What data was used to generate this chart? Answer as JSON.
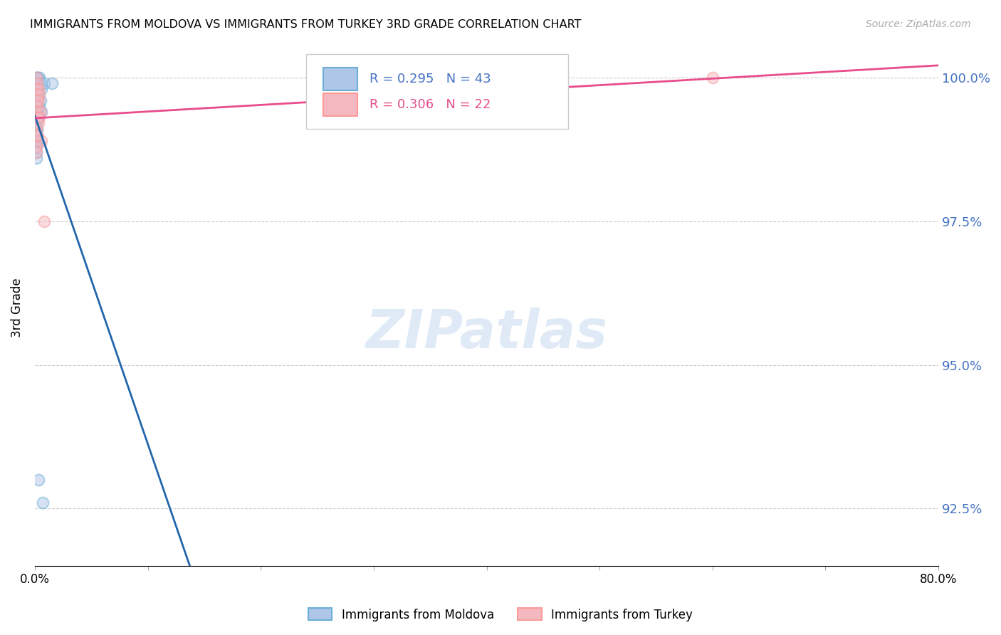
{
  "title": "IMMIGRANTS FROM MOLDOVA VS IMMIGRANTS FROM TURKEY 3RD GRADE CORRELATION CHART",
  "source": "Source: ZipAtlas.com",
  "ylabel": "3rd Grade",
  "xlim": [
    0.0,
    0.8
  ],
  "ylim": [
    0.915,
    1.005
  ],
  "ytick_vals": [
    1.0,
    0.975,
    0.95,
    0.925
  ],
  "ytick_labels": [
    "100.0%",
    "97.5%",
    "95.0%",
    "92.5%"
  ],
  "xtick_vals": [
    0.0,
    0.1,
    0.2,
    0.3,
    0.4,
    0.5,
    0.6,
    0.7,
    0.8
  ],
  "xtick_labels": [
    "0.0%",
    "",
    "",
    "",
    "",
    "",
    "",
    "",
    "80.0%"
  ],
  "moldova_color_fill": "#aec6e8",
  "moldova_color_edge": "#6baed6",
  "moldova_line_color": "#2166ac",
  "turkey_color_fill": "#f4b8c1",
  "turkey_color_edge": "#fb9a99",
  "turkey_line_color": "#e84c8b",
  "moldova_R": 0.295,
  "moldova_N": 43,
  "turkey_R": 0.306,
  "turkey_N": 22,
  "legend_label_moldova": "Immigrants from Moldova",
  "legend_label_turkey": "Immigrants from Turkey",
  "moldova_x": [
    0.001,
    0.002,
    0.003,
    0.001,
    0.002,
    0.004,
    0.001,
    0.001,
    0.002,
    0.003,
    0.005,
    0.001,
    0.002,
    0.001,
    0.002,
    0.003,
    0.001,
    0.001,
    0.002,
    0.006,
    0.001,
    0.002,
    0.001,
    0.003,
    0.002,
    0.001,
    0.004,
    0.001,
    0.002,
    0.001,
    0.003,
    0.002,
    0.001,
    0.001,
    0.002,
    0.001,
    0.008,
    0.001,
    0.005,
    0.006,
    0.003,
    0.007,
    0.015
  ],
  "moldova_y": [
    1.0,
    1.0,
    1.0,
    0.999,
    0.999,
    1.0,
    0.998,
    0.998,
    0.998,
    0.999,
    0.999,
    0.997,
    0.997,
    0.996,
    0.996,
    0.997,
    0.995,
    0.995,
    0.994,
    0.998,
    0.993,
    0.993,
    0.993,
    0.994,
    0.993,
    0.992,
    0.995,
    0.991,
    0.991,
    0.99,
    0.993,
    0.99,
    0.989,
    0.988,
    0.989,
    0.987,
    0.999,
    0.986,
    0.996,
    0.994,
    0.93,
    0.926,
    0.999
  ],
  "turkey_x": [
    0.001,
    0.002,
    0.001,
    0.003,
    0.002,
    0.004,
    0.001,
    0.003,
    0.002,
    0.001,
    0.005,
    0.002,
    0.003,
    0.001,
    0.002,
    0.006,
    0.001,
    0.004,
    0.002,
    0.001,
    0.008,
    0.6
  ],
  "turkey_y": [
    1.0,
    0.999,
    0.998,
    0.998,
    0.997,
    0.997,
    0.996,
    0.996,
    0.995,
    0.994,
    0.994,
    0.993,
    0.992,
    0.991,
    0.99,
    0.989,
    0.988,
    0.993,
    0.99,
    0.987,
    0.975,
    1.0
  ]
}
